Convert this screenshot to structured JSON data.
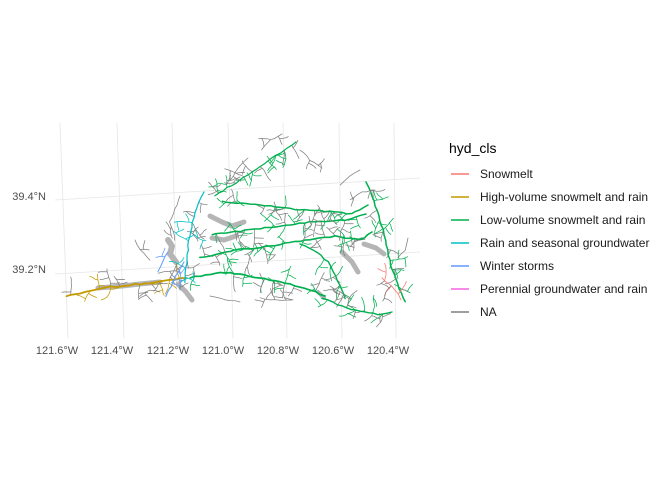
{
  "map": {
    "legend": {
      "title": "hyd_cls",
      "entries": [
        {
          "label": "Snowmelt",
          "color": "#F8766D"
        },
        {
          "label": "High-volume snowmelt and rain",
          "color": "#C49A00"
        },
        {
          "label": "Low-volume snowmelt and rain",
          "color": "#00B04F"
        },
        {
          "label": "Rain and seasonal groundwater",
          "color": "#00BFC4"
        },
        {
          "label": "Winter storms",
          "color": "#619CFF"
        },
        {
          "label": "Perennial groundwater and rain",
          "color": "#F564E3"
        },
        {
          "label": "NA",
          "color": "#808080"
        }
      ]
    },
    "axes": {
      "x_ticks": [
        "121.6°W",
        "121.4°W",
        "121.2°W",
        "121.0°W",
        "120.8°W",
        "120.6°W",
        "120.4°W"
      ],
      "y_ticks": [
        "39.4°N",
        "39.2°N"
      ]
    }
  }
}
